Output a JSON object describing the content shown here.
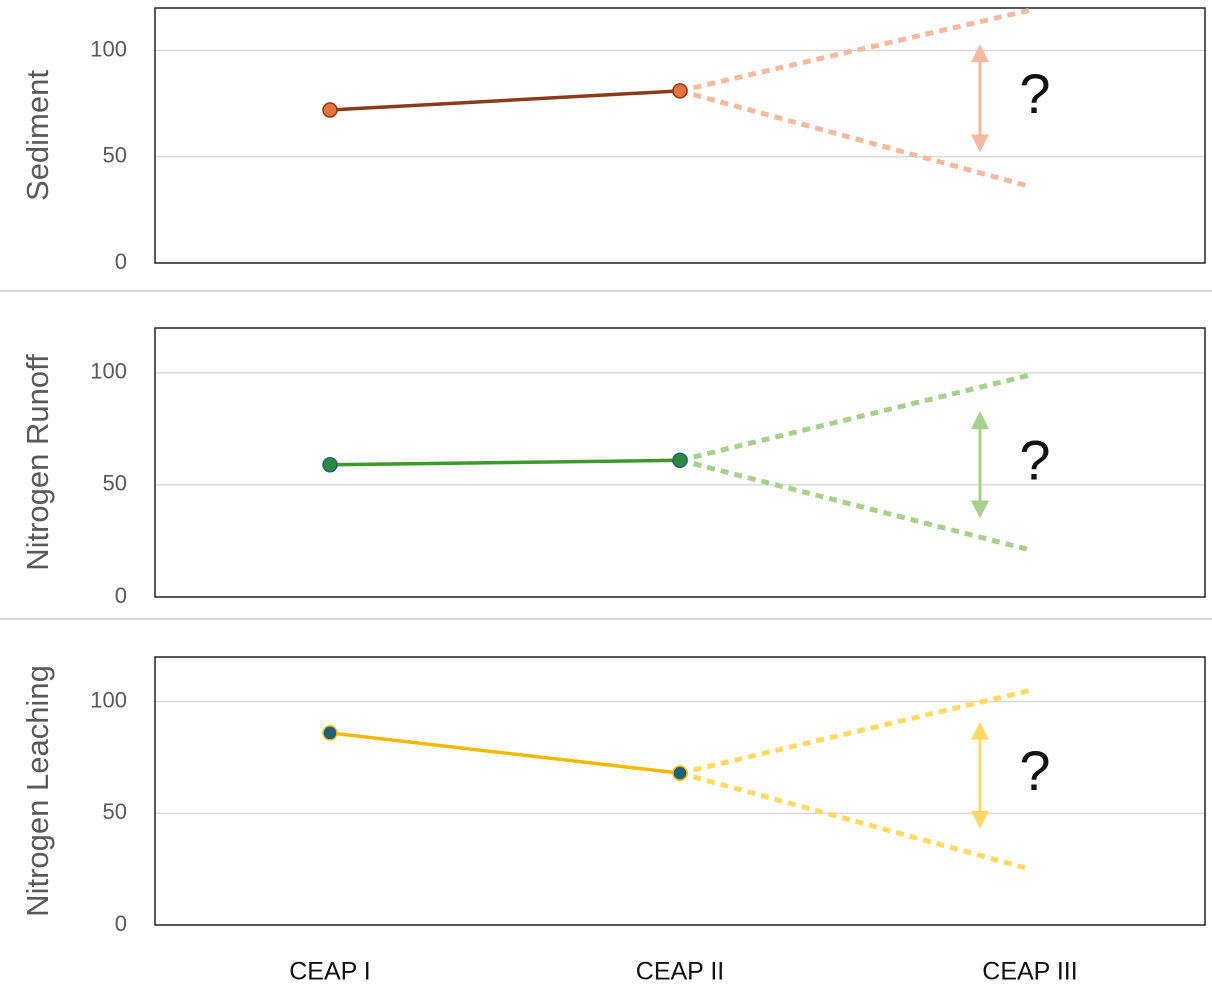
{
  "chart_data": [
    {
      "type": "line",
      "y_label": "Sediment",
      "values": [
        72,
        81,
        null
      ],
      "projection_high": 119,
      "projection_low": 36,
      "range_arrow": [
        103,
        52
      ],
      "annotation": "?",
      "line_color": "#8b3a1a",
      "marker_color": "#e8743b",
      "marker_edge": "#8b3a1a",
      "projection_color": "#f4b9a0",
      "ylim": [
        0,
        120
      ],
      "yticks": [
        0,
        50,
        100
      ],
      "grid": true
    },
    {
      "type": "line",
      "y_label": "Nitrogen Runoff",
      "values": [
        59,
        61,
        null
      ],
      "projection_high": 99,
      "projection_low": 21,
      "range_arrow": [
        83,
        35
      ],
      "annotation": "?",
      "line_color": "#3c9a2c",
      "marker_color": "#2e8b3a",
      "marker_edge": "#1f5f7a",
      "projection_color": "#a8d08d",
      "ylim": [
        0,
        120
      ],
      "yticks": [
        0,
        50,
        100
      ],
      "grid": true
    },
    {
      "type": "line",
      "y_label": "Nitrogen Leaching",
      "categories": [
        "CEAP I",
        "CEAP II",
        "CEAP III"
      ],
      "values": [
        86,
        68,
        null
      ],
      "projection_high": 105,
      "projection_low": 25,
      "range_arrow": [
        91,
        43
      ],
      "annotation": "?",
      "line_color": "#f5b800",
      "marker_color": "#1f5f7a",
      "marker_edge": "#f5b800",
      "projection_color": "#ffd966",
      "ylim": [
        0,
        120
      ],
      "yticks": [
        0,
        50,
        100
      ],
      "grid": true
    }
  ]
}
